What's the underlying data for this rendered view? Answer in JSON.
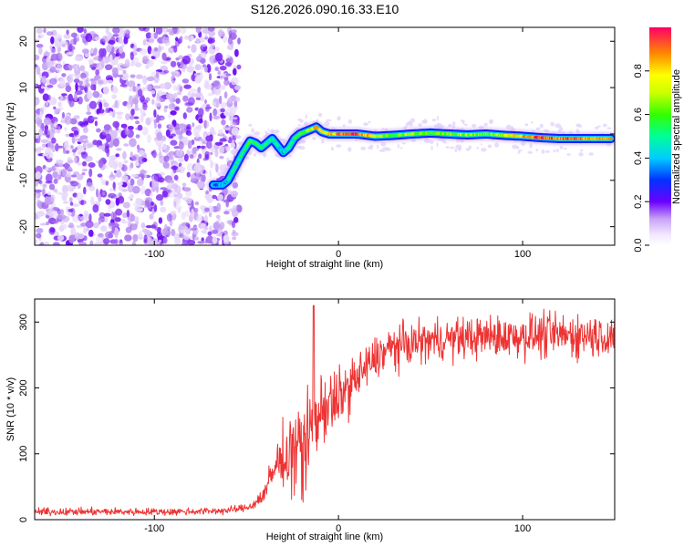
{
  "title": "S126.2026.090.16.33.E10",
  "chart_data": [
    {
      "type": "heatmap",
      "xlabel": "Height of straight line (km)",
      "ylabel": "Frequency (Hz)",
      "xlim": [
        -165,
        150
      ],
      "ylim": [
        -24,
        23
      ],
      "xticks": [
        -100,
        0,
        100
      ],
      "xtick_labels": [
        "-100",
        "0",
        "100"
      ],
      "yticks": [
        -20,
        -10,
        0,
        10,
        20
      ],
      "ytick_labels": [
        "-20",
        "-10",
        "0",
        "10",
        "20"
      ],
      "noise_region_x": [
        -165,
        -58
      ],
      "ridge": {
        "x": [
          -68,
          -63,
          -60,
          -56,
          -52,
          -48,
          -45,
          -42,
          -39,
          -36,
          -33,
          -30,
          -27,
          -24,
          -21,
          -18,
          -15,
          -12,
          -9,
          -5,
          0,
          10,
          20,
          30,
          40,
          50,
          60,
          70,
          80,
          90,
          100,
          110,
          120,
          130,
          140,
          148
        ],
        "y": [
          -11,
          -11,
          -10,
          -7,
          -4,
          -1.5,
          -2,
          -3,
          -2,
          -1,
          -2.5,
          -4,
          -3,
          -1,
          0,
          0.5,
          1,
          1.5,
          0.5,
          0,
          0,
          0,
          -0.5,
          -0.3,
          0,
          0.2,
          0,
          -0.2,
          0,
          -0.3,
          -0.5,
          -0.8,
          -1,
          -1,
          -1,
          -1
        ],
        "amplitude": [
          0.35,
          0.4,
          0.45,
          0.5,
          0.5,
          0.55,
          0.6,
          0.5,
          0.55,
          0.5,
          0.45,
          0.4,
          0.45,
          0.5,
          0.6,
          0.65,
          0.7,
          0.85,
          0.75,
          0.8,
          0.9,
          1.0,
          0.7,
          0.6,
          0.65,
          0.6,
          0.6,
          0.65,
          0.6,
          0.7,
          0.8,
          0.95,
          0.9,
          0.9,
          0.85,
          0.8
        ]
      },
      "colorbar": {
        "label": "Normalized spectral amplitude",
        "range": [
          0,
          1
        ],
        "ticks": [
          0.0,
          0.2,
          0.4,
          0.6,
          0.8
        ],
        "tick_labels": [
          "0.0",
          "0.2",
          "0.4",
          "0.6",
          "0.8"
        ]
      }
    },
    {
      "type": "line",
      "xlabel": "Height of straight line (km)",
      "ylabel": "SNR (10 * v/v)",
      "xlim": [
        -165,
        150
      ],
      "ylim": [
        0,
        335
      ],
      "xticks": [
        -100,
        0,
        100
      ],
      "xtick_labels": [
        "-100",
        "0",
        "100"
      ],
      "yticks": [
        0,
        100,
        200,
        300
      ],
      "ytick_labels": [
        "0",
        "100",
        "200",
        "300"
      ],
      "color": "#ee3333",
      "series": [
        {
          "name": "SNR",
          "x": [
            -165,
            -150,
            -130,
            -110,
            -90,
            -70,
            -60,
            -50,
            -45,
            -42,
            -40,
            -38,
            -35,
            -30,
            -25,
            -20,
            -15,
            -12,
            -10,
            -5,
            0,
            5,
            10,
            15,
            20,
            25,
            30,
            40,
            50,
            60,
            70,
            80,
            90,
            100,
            110,
            120,
            130,
            140,
            150
          ],
          "y": [
            12,
            12,
            12,
            12,
            12,
            13,
            14,
            18,
            25,
            35,
            40,
            55,
            75,
            100,
            110,
            120,
            140,
            160,
            165,
            175,
            185,
            200,
            215,
            230,
            245,
            255,
            262,
            268,
            272,
            275,
            276,
            278,
            278,
            279,
            280,
            280,
            280,
            280,
            280
          ],
          "noise": [
            5,
            5,
            5,
            5,
            5,
            5,
            5,
            5,
            8,
            12,
            12,
            20,
            30,
            40,
            45,
            45,
            50,
            55,
            50,
            45,
            40,
            35,
            35,
            30,
            30,
            30,
            30,
            28,
            28,
            28,
            28,
            28,
            28,
            30,
            30,
            30,
            30,
            30,
            30
          ]
        }
      ],
      "spikes": [
        {
          "x": -13.5,
          "y": 325
        }
      ]
    }
  ]
}
